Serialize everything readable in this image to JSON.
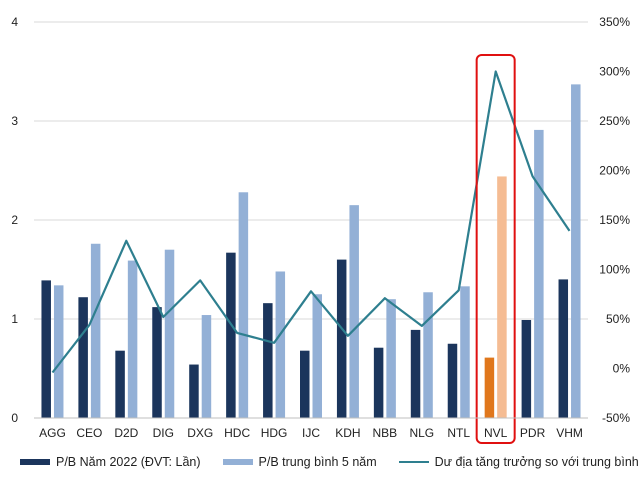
{
  "chart_data": {
    "type": "bar",
    "categories": [
      "AGG",
      "CEO",
      "D2D",
      "DIG",
      "DXG",
      "HDC",
      "HDG",
      "IJC",
      "KDH",
      "NBB",
      "NLG",
      "NTL",
      "NVL",
      "PDR",
      "VHM"
    ],
    "series": [
      {
        "name": "P/B Năm 2022 (ĐVT: Lần)",
        "type": "bar",
        "axis": "left",
        "color": "#1b355c",
        "values": [
          1.39,
          1.22,
          0.68,
          1.12,
          0.54,
          1.67,
          1.16,
          0.68,
          1.6,
          0.71,
          0.89,
          0.75,
          0.61,
          0.99,
          1.4
        ]
      },
      {
        "name": "P/B trung bình 5 năm",
        "type": "bar",
        "axis": "left",
        "color": "#93b0d6",
        "values": [
          1.34,
          1.76,
          1.59,
          1.7,
          1.04,
          2.28,
          1.48,
          1.25,
          2.15,
          1.2,
          1.27,
          1.33,
          2.44,
          2.91,
          3.37
        ]
      },
      {
        "name": "Dư địa tăng trưởng so với trung bình",
        "type": "line",
        "axis": "right",
        "color": "#2e7f8f",
        "values": [
          -4,
          44,
          129,
          52,
          89,
          36,
          26,
          78,
          33,
          71,
          43,
          79,
          300,
          194,
          139
        ]
      }
    ],
    "highlight": {
      "category": "NVL",
      "bar_colors": [
        "#e0771c",
        "#f5bc93"
      ],
      "box_color": "#e01010"
    },
    "left_axis": {
      "min": 0,
      "max": 4,
      "ticks": [
        "0",
        "1",
        "2",
        "3",
        "4"
      ]
    },
    "right_axis": {
      "min": -50,
      "max": 350,
      "ticks": [
        "-50%",
        "0%",
        "50%",
        "100%",
        "150%",
        "200%",
        "250%",
        "300%",
        "350%"
      ]
    },
    "grid": true,
    "legend_position": "bottom"
  }
}
